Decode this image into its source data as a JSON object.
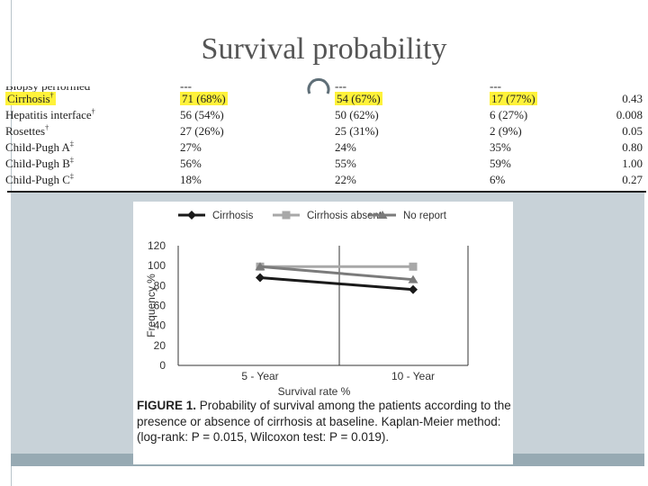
{
  "slide": {
    "title": "Survival probability"
  },
  "table": {
    "cut_row": {
      "label": "Biopsy performed",
      "v1": "---",
      "v2": "---",
      "v3": "---"
    },
    "rows": [
      {
        "label": "Cirrhosis",
        "mark": "†",
        "v1": "71 (68%)",
        "v2": "54 (67%)",
        "v3": "17 (77%)",
        "p": "0.43",
        "highlight": true
      },
      {
        "label": "Hepatitis interface",
        "mark": "†",
        "v1": "56 (54%)",
        "v2": "50 (62%)",
        "v3": "6 (27%)",
        "p": "0.008",
        "highlight": false
      },
      {
        "label": "Rosettes",
        "mark": "†",
        "v1": "27 (26%)",
        "v2": "25 (31%)",
        "v3": "2 (9%)",
        "p": "0.05",
        "highlight": false
      },
      {
        "label": "Child-Pugh A",
        "mark": "‡",
        "v1": "27%",
        "v2": "24%",
        "v3": "35%",
        "p": "0.80",
        "highlight": false
      },
      {
        "label": "Child-Pugh B",
        "mark": "‡",
        "v1": "56%",
        "v2": "55%",
        "v3": "59%",
        "p": "1.00",
        "highlight": false
      },
      {
        "label": "Child-Pugh C",
        "mark": "‡",
        "v1": "18%",
        "v2": "22%",
        "v3": "6%",
        "p": "0.27",
        "highlight": false
      }
    ]
  },
  "chart_data": {
    "type": "line",
    "categories": [
      "5 - Year",
      "10 - Year"
    ],
    "series": [
      {
        "name": "Cirrhosis",
        "values": [
          88,
          76
        ],
        "color": "#1a1a1a",
        "marker": "diamond"
      },
      {
        "name": "Cirrhosis absent",
        "values": [
          99,
          99
        ],
        "color": "#a8a8a8",
        "marker": "square"
      },
      {
        "name": "No report",
        "values": [
          99,
          86
        ],
        "color": "#7b7b7b",
        "marker": "triangle"
      }
    ],
    "xlabel": "Survival rate %",
    "ylabel": "Frequency %",
    "ylim": [
      0,
      120
    ],
    "yticks": [
      "0",
      "20",
      "40",
      "60",
      "80",
      "100",
      "120"
    ],
    "grid": false,
    "legend": "top"
  },
  "caption": {
    "label": "FIGURE 1.",
    "text": "Probability of survival among the patients according to the presence or absence of cirrhosis at baseline. Kaplan-Meier method: (log-rank: P = 0.015, Wilcoxon test: P = 0.019)."
  }
}
